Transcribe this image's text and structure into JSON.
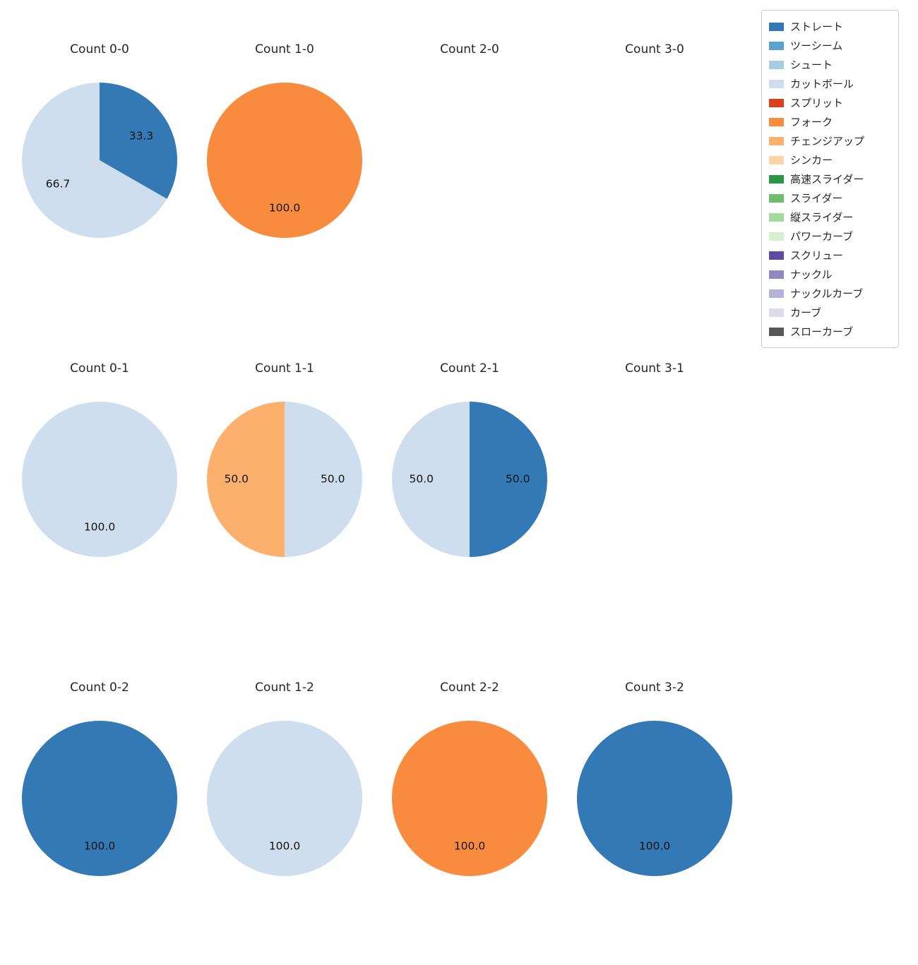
{
  "figure": {
    "background": "#ffffff",
    "text_color": "#262626"
  },
  "legend": {
    "items": [
      {
        "label": "ストレート",
        "color": "#3279b5"
      },
      {
        "label": "ツーシーム",
        "color": "#5ba3cf"
      },
      {
        "label": "シュート",
        "color": "#a7cde2"
      },
      {
        "label": "カットボール",
        "color": "#cfdeef"
      },
      {
        "label": "スプリット",
        "color": "#d9411e"
      },
      {
        "label": "フォーク",
        "color": "#f98b3f"
      },
      {
        "label": "チェンジアップ",
        "color": "#fbb06e"
      },
      {
        "label": "シンカー",
        "color": "#fdd5a7"
      },
      {
        "label": "高速スライダー",
        "color": "#2d9548"
      },
      {
        "label": "スライダー",
        "color": "#6dbf6d"
      },
      {
        "label": "縦スライダー",
        "color": "#a3d99c"
      },
      {
        "label": "パワーカーブ",
        "color": "#d5efcf"
      },
      {
        "label": "スクリュー",
        "color": "#5f4ba2"
      },
      {
        "label": "ナックル",
        "color": "#8f88c1"
      },
      {
        "label": "ナックルカーブ",
        "color": "#b6b3d8"
      },
      {
        "label": "カーブ",
        "color": "#dcdaeb"
      },
      {
        "label": "スローカーブ",
        "color": "#575757"
      }
    ]
  },
  "chart_data": {
    "type": "pie",
    "layout": {
      "columns": 4,
      "rows": 3,
      "start_angle_deg": 90,
      "direction": "clockwise",
      "legend_position": "upper right"
    },
    "value_unit": "percent",
    "charts": [
      {
        "title": "Count 0-0",
        "slices": [
          {
            "label": "ストレート",
            "value": 33.3
          },
          {
            "label": "カットボール",
            "value": 66.7
          }
        ]
      },
      {
        "title": "Count 1-0",
        "slices": [
          {
            "label": "フォーク",
            "value": 100.0
          }
        ]
      },
      {
        "title": "Count 2-0",
        "slices": []
      },
      {
        "title": "Count 3-0",
        "slices": []
      },
      {
        "title": "Count 0-1",
        "slices": [
          {
            "label": "カットボール",
            "value": 100.0
          }
        ]
      },
      {
        "title": "Count 1-1",
        "slices": [
          {
            "label": "カットボール",
            "value": 50.0
          },
          {
            "label": "チェンジアップ",
            "value": 50.0
          }
        ]
      },
      {
        "title": "Count 2-1",
        "slices": [
          {
            "label": "ストレート",
            "value": 50.0
          },
          {
            "label": "カットボール",
            "value": 50.0
          }
        ]
      },
      {
        "title": "Count 3-1",
        "slices": []
      },
      {
        "title": "Count 0-2",
        "slices": [
          {
            "label": "ストレート",
            "value": 100.0
          }
        ]
      },
      {
        "title": "Count 1-2",
        "slices": [
          {
            "label": "カットボール",
            "value": 100.0
          }
        ]
      },
      {
        "title": "Count 2-2",
        "slices": [
          {
            "label": "フォーク",
            "value": 100.0
          }
        ]
      },
      {
        "title": "Count 3-2",
        "slices": [
          {
            "label": "ストレート",
            "value": 100.0
          }
        ]
      }
    ]
  }
}
